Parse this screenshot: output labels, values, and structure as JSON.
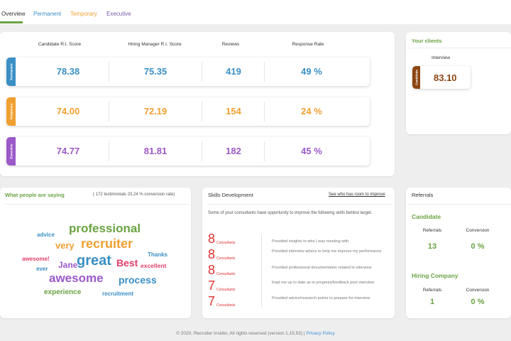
{
  "tabs": [
    "Overview",
    "Permanent",
    "Temporary",
    "Executive"
  ],
  "scores": {
    "headers": [
      "Candidate R.I. Score",
      "Hiring Manager R.I. Score",
      "Reviews",
      "Response Rate"
    ],
    "rows": [
      {
        "label": "Permanent",
        "candidate": "78.38",
        "hiring": "75.35",
        "reviews": "419",
        "response": "49 %",
        "color": "#3a8fc4"
      },
      {
        "label": "Temporary",
        "candidate": "74.00",
        "hiring": "72.19",
        "reviews": "154",
        "response": "24 %",
        "color": "#f0a030"
      },
      {
        "label": "Executive",
        "candidate": "74.77",
        "hiring": "81.81",
        "reviews": "182",
        "response": "45 %",
        "color": "#9b59c9"
      }
    ]
  },
  "clients": {
    "title": "Your clients",
    "interview_label": "Interview",
    "tag": "Candidate",
    "value": "83.10",
    "color": "#8b4513"
  },
  "people": {
    "title": "What people are saying",
    "stats": "( 172 testimonials 23.24 % conversion rate)",
    "words": [
      {
        "text": "advice",
        "color": "#3a8fc4"
      },
      {
        "text": "professional",
        "color": "#6aa342"
      },
      {
        "text": "very",
        "color": "#f0a030"
      },
      {
        "text": "recruiter",
        "color": "#f0a030"
      },
      {
        "text": "Thanks",
        "color": "#3a8fc4"
      },
      {
        "text": "awesome!",
        "color": "#e0406a"
      },
      {
        "text": "Jane",
        "color": "#9b59c9"
      },
      {
        "text": "great",
        "color": "#3a8fc4"
      },
      {
        "text": "Best",
        "color": "#e0406a"
      },
      {
        "text": "excellent",
        "color": "#e0406a"
      },
      {
        "text": "ever",
        "color": "#3a8fc4"
      },
      {
        "text": "awesome",
        "color": "#9b59c9"
      },
      {
        "text": "process",
        "color": "#3a8fc4"
      },
      {
        "text": "experience",
        "color": "#6aa342"
      },
      {
        "text": "recruitment",
        "color": "#3a8fc4"
      }
    ]
  },
  "skills": {
    "title": "Skills Development",
    "link": "See who has room to improve",
    "intro": "Some of your consultants have opportunity to improve the following skills behind target.",
    "items": [
      {
        "count": "8",
        "unit": "Consultants",
        "text": "Provided insights to who I was meeting with"
      },
      {
        "count": "8",
        "unit": "Consultants",
        "text": "Provided interview advice to help me improve my performance"
      },
      {
        "count": "8",
        "unit": "Consultants",
        "text": "Provided professional documentation related to interview"
      },
      {
        "count": "7",
        "unit": "Consultants",
        "text": "Kept me up to date as to progress/feedback post interview"
      },
      {
        "count": "7",
        "unit": "Consultants",
        "text": "Provided advice/research points to prepare for interview"
      }
    ]
  },
  "referrals": {
    "title": "Referrals",
    "candidate": {
      "title": "Candidate",
      "referrals_label": "Referrals",
      "conversion_label": "Conversion",
      "referrals": "13",
      "conversion": "0 %"
    },
    "company": {
      "title": "Hiring Company",
      "referrals_label": "Referrals",
      "conversion_label": "Conversion",
      "referrals": "1",
      "conversion": "0 %"
    }
  },
  "footer": {
    "text": "© 2020, Recruiter Insider, All rights reserved (version 1.15.53) |",
    "link": "Privacy Policy"
  }
}
